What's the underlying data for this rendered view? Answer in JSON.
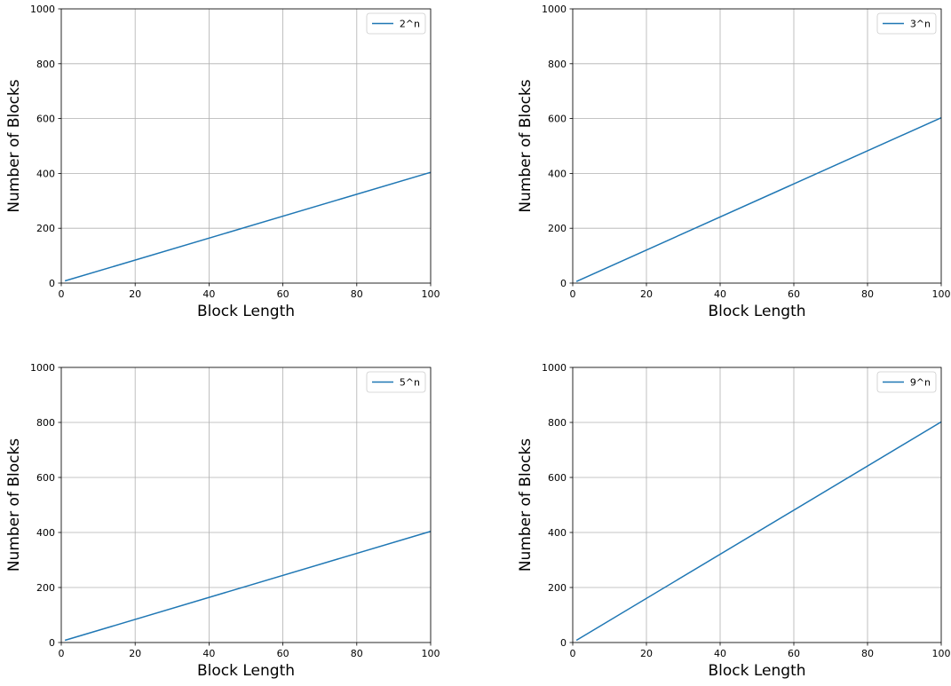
{
  "chart_data": [
    {
      "type": "line",
      "xlabel": "Block Length",
      "ylabel": "Number of Blocks",
      "xlim": [
        0,
        100
      ],
      "ylim": [
        0,
        1000
      ],
      "xticks": [
        0,
        20,
        40,
        60,
        80,
        100
      ],
      "yticks": [
        0,
        200,
        400,
        600,
        800,
        1000
      ],
      "grid": true,
      "legend_position": "top-right",
      "series": [
        {
          "name": "2^n",
          "color": "#1f77b4",
          "x": [
            1,
            100
          ],
          "y": [
            8,
            404
          ]
        }
      ]
    },
    {
      "type": "line",
      "xlabel": "Block Length",
      "ylabel": "Number of Blocks",
      "xlim": [
        0,
        100
      ],
      "ylim": [
        0,
        1000
      ],
      "xticks": [
        0,
        20,
        40,
        60,
        80,
        100
      ],
      "yticks": [
        0,
        200,
        400,
        600,
        800,
        1000
      ],
      "grid": true,
      "legend_position": "top-right",
      "series": [
        {
          "name": "3^n",
          "color": "#1f77b4",
          "x": [
            1,
            100
          ],
          "y": [
            6,
            603
          ]
        }
      ]
    },
    {
      "type": "line",
      "xlabel": "Block Length",
      "ylabel": "Number of Blocks",
      "xlim": [
        0,
        100
      ],
      "ylim": [
        0,
        1000
      ],
      "xticks": [
        0,
        20,
        40,
        60,
        80,
        100
      ],
      "yticks": [
        0,
        200,
        400,
        600,
        800,
        1000
      ],
      "grid": true,
      "legend_position": "top-right",
      "series": [
        {
          "name": "5^n",
          "color": "#1f77b4",
          "x": [
            1,
            100
          ],
          "y": [
            8,
            404
          ]
        }
      ]
    },
    {
      "type": "line",
      "xlabel": "Block Length",
      "ylabel": "Number of Blocks",
      "xlim": [
        0,
        100
      ],
      "ylim": [
        0,
        1000
      ],
      "xticks": [
        0,
        20,
        40,
        60,
        80,
        100
      ],
      "yticks": [
        0,
        200,
        400,
        600,
        800,
        1000
      ],
      "grid": true,
      "legend_position": "top-right",
      "series": [
        {
          "name": "9^n",
          "color": "#1f77b4",
          "x": [
            1,
            100
          ],
          "y": [
            8,
            802
          ]
        }
      ]
    }
  ]
}
